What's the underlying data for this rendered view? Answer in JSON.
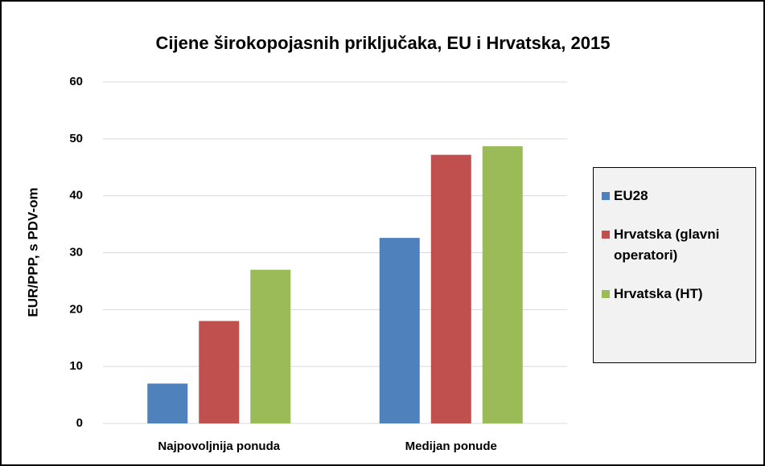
{
  "chart_data": {
    "type": "bar",
    "title": "Cijene širokopojasnih  priključaka, EU i Hrvatska, 2015",
    "y_label": "EUR/PPP, s PDV-om",
    "categories": [
      "Najpovoljnija ponuda",
      "Medijan ponude"
    ],
    "series": [
      {
        "name": "EU28",
        "color": "#4f81bd",
        "values": [
          7,
          32.6
        ]
      },
      {
        "name": "Hrvatska (glavni operatori)",
        "color": "#c0504d",
        "values": [
          18,
          47.2
        ]
      },
      {
        "name": "Hrvatska (HT)",
        "color": "#9bbb59",
        "values": [
          27,
          48.7
        ]
      }
    ],
    "ylim": [
      0,
      60
    ],
    "yticks": [
      0,
      10,
      20,
      30,
      40,
      50,
      60
    ],
    "grid": true,
    "legend": "right"
  }
}
